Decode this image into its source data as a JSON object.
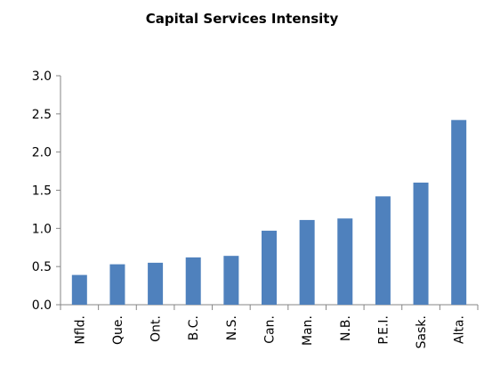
{
  "chart_data": {
    "type": "bar",
    "title": "Capital Services Intensity",
    "xlabel": "",
    "ylabel": "",
    "categories": [
      "Nfld.",
      "Que.",
      "Ont.",
      "B.C.",
      "N.S.",
      "Can.",
      "Man.",
      "N.B.",
      "P.E.I.",
      "Sask.",
      "Alta."
    ],
    "values": [
      0.39,
      0.53,
      0.55,
      0.62,
      0.64,
      0.97,
      1.11,
      1.13,
      1.42,
      1.6,
      2.42
    ],
    "ylim": [
      0,
      3.0
    ],
    "yticks": [
      "0.0",
      "0.5",
      "1.0",
      "1.5",
      "2.0",
      "2.5",
      "3.0"
    ],
    "bar_color": "#4F81BD",
    "grid": false,
    "legend": "none"
  }
}
